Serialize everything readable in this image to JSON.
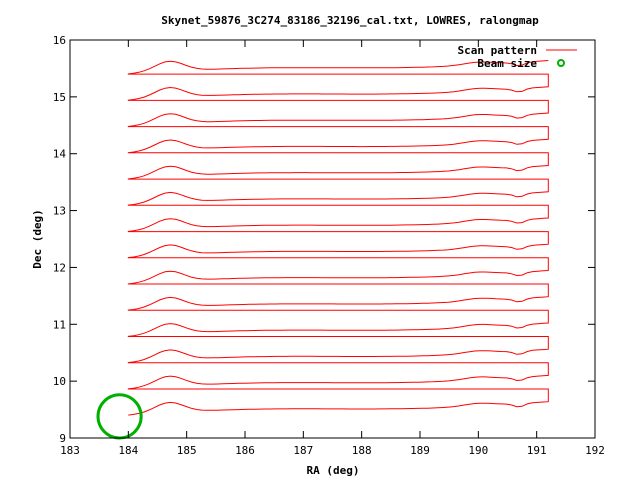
{
  "chart_data": {
    "type": "line",
    "title": "Skynet_59876_3C274_83186_32196_cal.txt, LOWRES, ralongmap",
    "xlabel": "RA (deg)",
    "ylabel": "Dec (deg)",
    "xlim": [
      183,
      192
    ],
    "ylim": [
      9,
      16
    ],
    "xticks": [
      "183",
      "184",
      "185",
      "186",
      "187",
      "188",
      "189",
      "190",
      "191",
      "192"
    ],
    "yticks": [
      "9",
      "10",
      "11",
      "12",
      "13",
      "14",
      "15",
      "16"
    ],
    "grid": false,
    "legend_position": "top-right",
    "series": [
      {
        "name": "Scan pattern",
        "color": "#ff0000"
      },
      {
        "name": "Beam size",
        "color": "#00b000"
      }
    ],
    "scan": {
      "ra_start": 184.0,
      "ra_end": 191.2,
      "dec_first": 9.4,
      "dec_last": 15.4,
      "rows": 27
    },
    "beam": {
      "ra": 183.85,
      "dec": 9.38,
      "radius_deg": 0.37
    }
  }
}
